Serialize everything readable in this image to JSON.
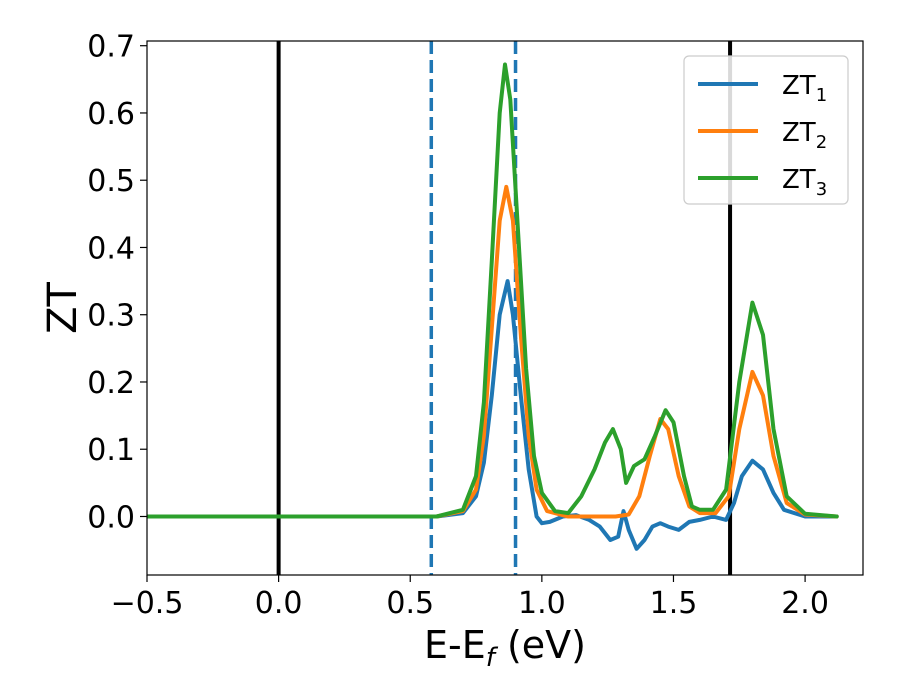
{
  "chart_data": {
    "type": "line",
    "xlabel": "E-E",
    "xlabel_sub": "f",
    "xlabel_unit": " (eV)",
    "ylabel": "ZT",
    "xlim": [
      -0.5,
      2.22
    ],
    "ylim": [
      -0.087,
      0.707
    ],
    "xticks": [
      {
        "value": -0.5,
        "label": "−0.5"
      },
      {
        "value": 0.0,
        "label": "0.0"
      },
      {
        "value": 0.5,
        "label": "0.5"
      },
      {
        "value": 1.0,
        "label": "1.0"
      },
      {
        "value": 1.5,
        "label": "1.5"
      },
      {
        "value": 2.0,
        "label": "2.0"
      }
    ],
    "yticks": [
      {
        "value": 0.0,
        "label": "0.0"
      },
      {
        "value": 0.1,
        "label": "0.1"
      },
      {
        "value": 0.2,
        "label": "0.2"
      },
      {
        "value": 0.3,
        "label": "0.3"
      },
      {
        "value": 0.4,
        "label": "0.4"
      },
      {
        "value": 0.5,
        "label": "0.5"
      },
      {
        "value": 0.6,
        "label": "0.6"
      },
      {
        "value": 0.7,
        "label": "0.7"
      }
    ],
    "grid": false,
    "legend_position": "top-right",
    "vlines": [
      {
        "x": 0.0,
        "style": "solid",
        "color": "#000000"
      },
      {
        "x": 1.715,
        "style": "solid",
        "color": "#000000"
      },
      {
        "x": 0.58,
        "style": "dashed",
        "color": "#1f77b4"
      },
      {
        "x": 0.9,
        "style": "dashed",
        "color": "#1f77b4"
      }
    ],
    "series": [
      {
        "name": "ZT",
        "name_sub": "1",
        "color": "#1f77b4",
        "points": [
          [
            -0.5,
            0
          ],
          [
            0.6,
            0
          ],
          [
            0.7,
            0.005
          ],
          [
            0.75,
            0.03
          ],
          [
            0.78,
            0.08
          ],
          [
            0.81,
            0.18
          ],
          [
            0.84,
            0.3
          ],
          [
            0.87,
            0.35
          ],
          [
            0.89,
            0.3
          ],
          [
            0.92,
            0.18
          ],
          [
            0.95,
            0.07
          ],
          [
            0.98,
            0.0
          ],
          [
            1.0,
            -0.01
          ],
          [
            1.03,
            -0.008
          ],
          [
            1.08,
            0.0
          ],
          [
            1.13,
            0.002
          ],
          [
            1.18,
            -0.005
          ],
          [
            1.22,
            -0.015
          ],
          [
            1.26,
            -0.035
          ],
          [
            1.29,
            -0.03
          ],
          [
            1.31,
            0.008
          ],
          [
            1.33,
            -0.02
          ],
          [
            1.36,
            -0.048
          ],
          [
            1.39,
            -0.035
          ],
          [
            1.42,
            -0.015
          ],
          [
            1.45,
            -0.01
          ],
          [
            1.48,
            -0.015
          ],
          [
            1.52,
            -0.02
          ],
          [
            1.56,
            -0.008
          ],
          [
            1.6,
            -0.005
          ],
          [
            1.65,
            0.0
          ],
          [
            1.7,
            -0.005
          ],
          [
            1.73,
            0.02
          ],
          [
            1.76,
            0.06
          ],
          [
            1.8,
            0.083
          ],
          [
            1.84,
            0.07
          ],
          [
            1.88,
            0.035
          ],
          [
            1.92,
            0.01
          ],
          [
            2.0,
            0.0
          ],
          [
            2.12,
            0.0
          ]
        ]
      },
      {
        "name": "ZT",
        "name_sub": "2",
        "color": "#ff7f0e",
        "points": [
          [
            -0.5,
            0
          ],
          [
            0.6,
            0
          ],
          [
            0.7,
            0.008
          ],
          [
            0.75,
            0.04
          ],
          [
            0.78,
            0.12
          ],
          [
            0.81,
            0.28
          ],
          [
            0.84,
            0.44
          ],
          [
            0.865,
            0.49
          ],
          [
            0.89,
            0.44
          ],
          [
            0.92,
            0.27
          ],
          [
            0.95,
            0.12
          ],
          [
            0.98,
            0.04
          ],
          [
            1.02,
            0.008
          ],
          [
            1.1,
            0.0
          ],
          [
            1.2,
            0.0
          ],
          [
            1.28,
            0.0
          ],
          [
            1.33,
            0.003
          ],
          [
            1.37,
            0.03
          ],
          [
            1.41,
            0.09
          ],
          [
            1.45,
            0.145
          ],
          [
            1.48,
            0.13
          ],
          [
            1.52,
            0.06
          ],
          [
            1.56,
            0.015
          ],
          [
            1.6,
            0.005
          ],
          [
            1.66,
            0.005
          ],
          [
            1.71,
            0.03
          ],
          [
            1.75,
            0.13
          ],
          [
            1.8,
            0.215
          ],
          [
            1.84,
            0.18
          ],
          [
            1.88,
            0.09
          ],
          [
            1.93,
            0.02
          ],
          [
            2.0,
            0.003
          ],
          [
            2.12,
            0.0
          ]
        ]
      },
      {
        "name": "ZT",
        "name_sub": "3",
        "color": "#2ca02c",
        "points": [
          [
            -0.5,
            0
          ],
          [
            0.6,
            0
          ],
          [
            0.7,
            0.01
          ],
          [
            0.75,
            0.06
          ],
          [
            0.78,
            0.17
          ],
          [
            0.81,
            0.38
          ],
          [
            0.84,
            0.6
          ],
          [
            0.86,
            0.672
          ],
          [
            0.88,
            0.62
          ],
          [
            0.91,
            0.42
          ],
          [
            0.94,
            0.22
          ],
          [
            0.97,
            0.09
          ],
          [
            1.0,
            0.035
          ],
          [
            1.05,
            0.008
          ],
          [
            1.1,
            0.005
          ],
          [
            1.15,
            0.03
          ],
          [
            1.2,
            0.07
          ],
          [
            1.24,
            0.11
          ],
          [
            1.27,
            0.13
          ],
          [
            1.3,
            0.1
          ],
          [
            1.32,
            0.05
          ],
          [
            1.35,
            0.075
          ],
          [
            1.39,
            0.085
          ],
          [
            1.43,
            0.12
          ],
          [
            1.47,
            0.158
          ],
          [
            1.5,
            0.14
          ],
          [
            1.54,
            0.06
          ],
          [
            1.57,
            0.015
          ],
          [
            1.6,
            0.01
          ],
          [
            1.65,
            0.01
          ],
          [
            1.7,
            0.04
          ],
          [
            1.75,
            0.2
          ],
          [
            1.8,
            0.318
          ],
          [
            1.84,
            0.27
          ],
          [
            1.88,
            0.13
          ],
          [
            1.93,
            0.03
          ],
          [
            2.0,
            0.004
          ],
          [
            2.12,
            0.0
          ]
        ]
      }
    ]
  }
}
